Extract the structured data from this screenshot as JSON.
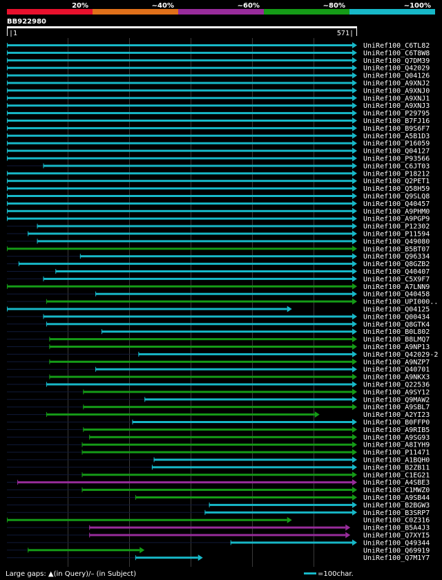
{
  "chart_data": {
    "type": "blast-alignment-overview",
    "query": {
      "id": "BB922980",
      "start": 1,
      "end": 571
    },
    "legend": {
      "labels": [
        "20%",
        "~40%",
        "~60%",
        "~80%",
        "~100%"
      ],
      "colors": [
        "#e8112d",
        "#e0701a",
        "#982c9b",
        "#159b17",
        "#17b8c8"
      ]
    },
    "footer": {
      "gaps_text": "Large gaps: ▲(in Query)/– (in Subject)",
      "scale_text": "=100char."
    },
    "hits": [
      {
        "name": "UniRef100_C6TL82",
        "start": 1,
        "end": 571,
        "color": "#17b8c8"
      },
      {
        "name": "UniRef100_C6T8W8",
        "start": 1,
        "end": 571,
        "color": "#17b8c8"
      },
      {
        "name": "UniRef100_Q7DM39",
        "start": 1,
        "end": 571,
        "color": "#17b8c8"
      },
      {
        "name": "UniRef100_Q42029",
        "start": 1,
        "end": 571,
        "color": "#17b8c8"
      },
      {
        "name": "UniRef100_Q04126",
        "start": 1,
        "end": 571,
        "color": "#17b8c8"
      },
      {
        "name": "UniRef100_A9XNJ2",
        "start": 1,
        "end": 571,
        "color": "#17b8c8"
      },
      {
        "name": "UniRef100_A9XNJ0",
        "start": 1,
        "end": 571,
        "color": "#17b8c8"
      },
      {
        "name": "UniRef100_A9XNJ1",
        "start": 1,
        "end": 571,
        "color": "#17b8c8"
      },
      {
        "name": "UniRef100_A9XNJ3",
        "start": 1,
        "end": 571,
        "color": "#17b8c8"
      },
      {
        "name": "UniRef100_P29795",
        "start": 1,
        "end": 571,
        "color": "#17b8c8"
      },
      {
        "name": "UniRef100_B7FJ16",
        "start": 1,
        "end": 571,
        "color": "#17b8c8"
      },
      {
        "name": "UniRef100_B9S6F7",
        "start": 1,
        "end": 571,
        "color": "#17b8c8"
      },
      {
        "name": "UniRef100_A5B1D3",
        "start": 1,
        "end": 571,
        "color": "#17b8c8"
      },
      {
        "name": "UniRef100_P16059",
        "start": 1,
        "end": 571,
        "color": "#17b8c8"
      },
      {
        "name": "UniRef100_Q04127",
        "start": 1,
        "end": 571,
        "color": "#17b8c8"
      },
      {
        "name": "UniRef100_P93566",
        "start": 1,
        "end": 571,
        "color": "#17b8c8"
      },
      {
        "name": "UniRef100_C6JT03",
        "start": 60,
        "end": 571,
        "color": "#17b8c8"
      },
      {
        "name": "UniRef100_P18212",
        "start": 1,
        "end": 571,
        "color": "#17b8c8"
      },
      {
        "name": "UniRef100_Q2PET1",
        "start": 1,
        "end": 571,
        "color": "#17b8c8"
      },
      {
        "name": "UniRef100_Q58H59",
        "start": 1,
        "end": 571,
        "color": "#17b8c8"
      },
      {
        "name": "UniRef100_Q9SLQ8",
        "start": 1,
        "end": 571,
        "color": "#17b8c8"
      },
      {
        "name": "UniRef100_Q40457",
        "start": 1,
        "end": 571,
        "color": "#17b8c8"
      },
      {
        "name": "UniRef100_A9PHM0",
        "start": 1,
        "end": 571,
        "color": "#17b8c8"
      },
      {
        "name": "UniRef100_A9PGP9",
        "start": 1,
        "end": 571,
        "color": "#17b8c8"
      },
      {
        "name": "UniRef100_P12302",
        "start": 50,
        "end": 571,
        "color": "#17b8c8"
      },
      {
        "name": "UniRef100_P11594",
        "start": 35,
        "end": 571,
        "color": "#17b8c8"
      },
      {
        "name": "UniRef100_Q49080",
        "start": 50,
        "end": 571,
        "color": "#17b8c8"
      },
      {
        "name": "UniRef100_B5BT07",
        "start": 1,
        "end": 571,
        "color": "#159b17"
      },
      {
        "name": "UniRef100_Q96334",
        "start": 120,
        "end": 571,
        "color": "#17b8c8"
      },
      {
        "name": "UniRef100_Q8GZB2",
        "start": 20,
        "end": 571,
        "color": "#17b8c8"
      },
      {
        "name": "UniRef100_Q40407",
        "start": 80,
        "end": 571,
        "color": "#17b8c8"
      },
      {
        "name": "UniRef100_C5X9F7",
        "start": 60,
        "end": 571,
        "color": "#17b8c8"
      },
      {
        "name": "UniRef100_A7LNN9",
        "start": 1,
        "end": 571,
        "color": "#159b17"
      },
      {
        "name": "UniRef100_Q40458",
        "start": 145,
        "end": 571,
        "color": "#17b8c8"
      },
      {
        "name": "UniRef100_UPI000..",
        "start": 65,
        "end": 571,
        "color": "#159b17"
      },
      {
        "name": "UniRef100_Q04125",
        "start": 1,
        "end": 465,
        "color": "#17b8c8"
      },
      {
        "name": "UniRef100_Q00434",
        "start": 60,
        "end": 571,
        "color": "#17b8c8"
      },
      {
        "name": "UniRef100_Q8GTK4",
        "start": 65,
        "end": 571,
        "color": "#17b8c8"
      },
      {
        "name": "UniRef100_B0L802",
        "start": 155,
        "end": 571,
        "color": "#17b8c8"
      },
      {
        "name": "UniRef100_B8LMQ7",
        "start": 70,
        "end": 571,
        "color": "#159b17"
      },
      {
        "name": "UniRef100_A9NP13",
        "start": 70,
        "end": 571,
        "color": "#159b17"
      },
      {
        "name": "UniRef100_Q42029-2",
        "start": 215,
        "end": 571,
        "color": "#17b8c8"
      },
      {
        "name": "UniRef100_A9NZP7",
        "start": 70,
        "end": 571,
        "color": "#159b17"
      },
      {
        "name": "UniRef100_Q40701",
        "start": 145,
        "end": 571,
        "color": "#17b8c8"
      },
      {
        "name": "UniRef100_A9NKX3",
        "start": 70,
        "end": 571,
        "color": "#159b17"
      },
      {
        "name": "UniRef100_Q22536",
        "start": 65,
        "end": 571,
        "color": "#17b8c8"
      },
      {
        "name": "UniRef100_A9SY12",
        "start": 125,
        "end": 571,
        "color": "#159b17"
      },
      {
        "name": "UniRef100_Q9MAW2",
        "start": 225,
        "end": 571,
        "color": "#17b8c8"
      },
      {
        "name": "UniRef100_A9SBL7",
        "start": 125,
        "end": 571,
        "color": "#159b17"
      },
      {
        "name": "UniRef100_A2YI23",
        "start": 65,
        "end": 510,
        "color": "#159b17"
      },
      {
        "name": "UniRef100_B0FFP0",
        "start": 205,
        "end": 571,
        "color": "#17b8c8"
      },
      {
        "name": "UniRef100_A9RIB5",
        "start": 125,
        "end": 571,
        "color": "#159b17"
      },
      {
        "name": "UniRef100_A9SG93",
        "start": 135,
        "end": 571,
        "color": "#159b17"
      },
      {
        "name": "UniRef100_A8IYH9",
        "start": 123,
        "end": 571,
        "color": "#159b17"
      },
      {
        "name": "UniRef100_P11471",
        "start": 123,
        "end": 571,
        "color": "#159b17"
      },
      {
        "name": "UniRef100_A1BQH0",
        "start": 240,
        "end": 571,
        "color": "#17b8c8"
      },
      {
        "name": "UniRef100_B2ZB11",
        "start": 237,
        "end": 571,
        "color": "#17b8c8"
      },
      {
        "name": "UniRef100_C1EG21",
        "start": 123,
        "end": 571,
        "color": "#159b17"
      },
      {
        "name": "UniRef100_A4SBE3",
        "start": 18,
        "end": 571,
        "color": "#982c9b"
      },
      {
        "name": "UniRef100_C1MWZ0",
        "start": 123,
        "end": 571,
        "color": "#159b17"
      },
      {
        "name": "UniRef100_A9SB44",
        "start": 210,
        "end": 571,
        "color": "#159b17"
      },
      {
        "name": "UniRef100_B2BGW3",
        "start": 330,
        "end": 571,
        "color": "#17b8c8"
      },
      {
        "name": "UniRef100_B3SRP7",
        "start": 323,
        "end": 571,
        "color": "#17b8c8"
      },
      {
        "name": "UniRef100_C0Z316",
        "start": 1,
        "end": 465,
        "color": "#159b17"
      },
      {
        "name": "UniRef100_B5A4J3",
        "start": 135,
        "end": 560,
        "color": "#982c9b"
      },
      {
        "name": "UniRef100_Q7XYI5",
        "start": 135,
        "end": 560,
        "color": "#982c9b"
      },
      {
        "name": "UniRef100_Q49344",
        "start": 365,
        "end": 571,
        "color": "#17b8c8"
      },
      {
        "name": "UniRef100_Q69919",
        "start": 35,
        "end": 225,
        "color": "#159b17"
      },
      {
        "name": "UniRef100_Q7M1Y7",
        "start": 210,
        "end": 320,
        "color": "#17b8c8"
      }
    ]
  }
}
